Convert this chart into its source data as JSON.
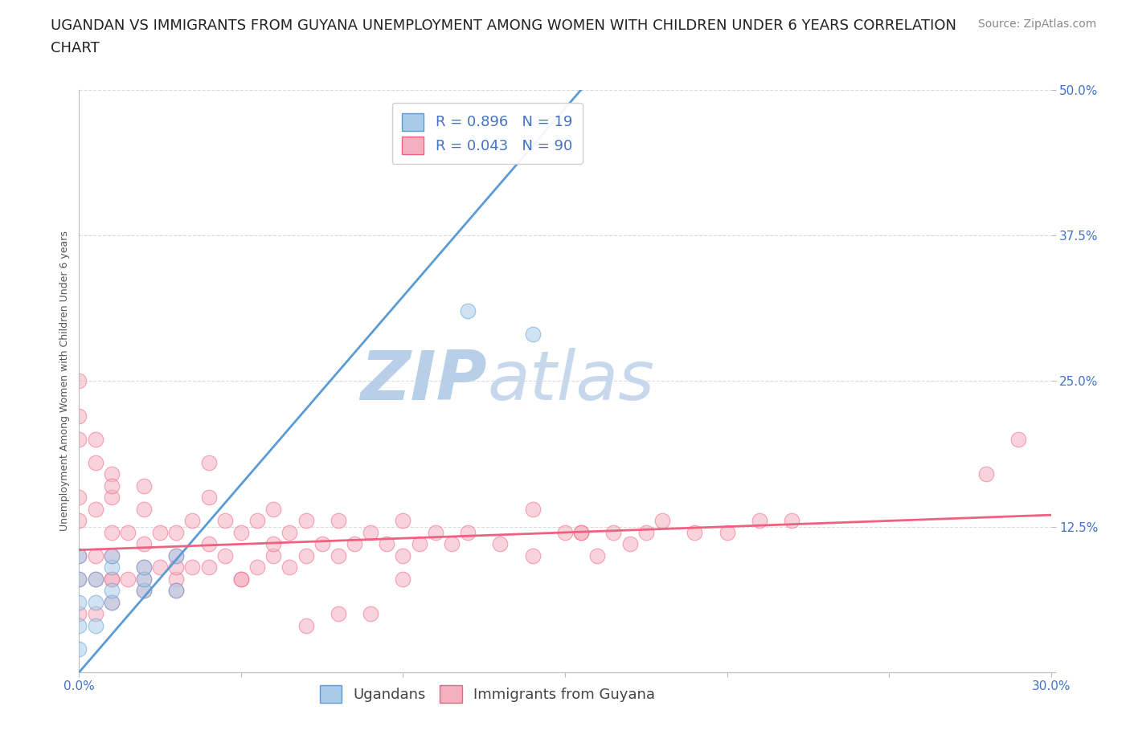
{
  "title": "UGANDAN VS IMMIGRANTS FROM GUYANA UNEMPLOYMENT AMONG WOMEN WITH CHILDREN UNDER 6 YEARS CORRELATION\nCHART",
  "source_text": "Source: ZipAtlas.com",
  "ylabel": "Unemployment Among Women with Children Under 6 years",
  "xlim": [
    0.0,
    0.3
  ],
  "ylim": [
    0.0,
    0.5
  ],
  "xticks": [
    0.0,
    0.05,
    0.1,
    0.15,
    0.2,
    0.25,
    0.3
  ],
  "xtick_labels": [
    "0.0%",
    "",
    "",
    "",
    "",
    "",
    "30.0%"
  ],
  "yticks": [
    0.0,
    0.125,
    0.25,
    0.375,
    0.5
  ],
  "ytick_labels": [
    "",
    "12.5%",
    "25.0%",
    "37.5%",
    "50.0%"
  ],
  "ugandan_color": "#a8cce8",
  "guyana_color": "#f4b0c0",
  "ugandan_line_color": "#5b9bd5",
  "guyana_line_color": "#f06080",
  "background_color": "#ffffff",
  "watermark_text": "ZIPatlas",
  "watermark_color": "#dde8f5",
  "legend_R1": "R = 0.896",
  "legend_N1": "N = 19",
  "legend_R2": "R = 0.043",
  "legend_N2": "N = 90",
  "ugandan_x": [
    0.0,
    0.0,
    0.0,
    0.0,
    0.0,
    0.005,
    0.005,
    0.005,
    0.01,
    0.01,
    0.01,
    0.01,
    0.02,
    0.02,
    0.02,
    0.03,
    0.03,
    0.12,
    0.14
  ],
  "ugandan_y": [
    0.02,
    0.04,
    0.06,
    0.08,
    0.1,
    0.04,
    0.06,
    0.08,
    0.06,
    0.07,
    0.09,
    0.1,
    0.07,
    0.08,
    0.09,
    0.07,
    0.1,
    0.31,
    0.29
  ],
  "guyana_x": [
    0.0,
    0.0,
    0.0,
    0.0,
    0.0,
    0.005,
    0.005,
    0.005,
    0.005,
    0.01,
    0.01,
    0.01,
    0.01,
    0.01,
    0.01,
    0.015,
    0.015,
    0.02,
    0.02,
    0.02,
    0.02,
    0.025,
    0.025,
    0.03,
    0.03,
    0.03,
    0.035,
    0.035,
    0.04,
    0.04,
    0.04,
    0.045,
    0.045,
    0.05,
    0.05,
    0.055,
    0.055,
    0.06,
    0.06,
    0.065,
    0.065,
    0.07,
    0.07,
    0.075,
    0.08,
    0.08,
    0.085,
    0.09,
    0.095,
    0.1,
    0.1,
    0.105,
    0.11,
    0.115,
    0.12,
    0.13,
    0.14,
    0.14,
    0.15,
    0.155,
    0.16,
    0.165,
    0.17,
    0.175,
    0.18,
    0.19,
    0.2,
    0.21,
    0.22,
    0.28,
    0.0,
    0.0,
    0.0,
    0.005,
    0.005,
    0.01,
    0.01,
    0.02,
    0.02,
    0.03,
    0.03,
    0.04,
    0.05,
    0.06,
    0.07,
    0.08,
    0.09,
    0.1,
    0.155,
    0.29
  ],
  "guyana_y": [
    0.05,
    0.08,
    0.1,
    0.13,
    0.15,
    0.05,
    0.08,
    0.1,
    0.14,
    0.06,
    0.08,
    0.1,
    0.12,
    0.15,
    0.17,
    0.08,
    0.12,
    0.07,
    0.09,
    0.11,
    0.14,
    0.09,
    0.12,
    0.08,
    0.1,
    0.12,
    0.09,
    0.13,
    0.09,
    0.11,
    0.15,
    0.1,
    0.13,
    0.08,
    0.12,
    0.09,
    0.13,
    0.1,
    0.14,
    0.09,
    0.12,
    0.1,
    0.13,
    0.11,
    0.1,
    0.13,
    0.11,
    0.12,
    0.11,
    0.1,
    0.13,
    0.11,
    0.12,
    0.11,
    0.12,
    0.11,
    0.1,
    0.14,
    0.12,
    0.12,
    0.1,
    0.12,
    0.11,
    0.12,
    0.13,
    0.12,
    0.12,
    0.13,
    0.13,
    0.17,
    0.2,
    0.22,
    0.25,
    0.18,
    0.2,
    0.16,
    0.08,
    0.16,
    0.08,
    0.07,
    0.09,
    0.18,
    0.08,
    0.11,
    0.04,
    0.05,
    0.05,
    0.08,
    0.12,
    0.2
  ],
  "ugandan_line_x": [
    0.0,
    0.155
  ],
  "ugandan_line_y": [
    0.0,
    0.5
  ],
  "guyana_line_x": [
    0.0,
    0.3
  ],
  "guyana_line_y": [
    0.105,
    0.135
  ],
  "dot_size": 180,
  "dot_alpha": 0.55,
  "title_fontsize": 13,
  "axis_label_fontsize": 9,
  "tick_fontsize": 11,
  "legend_fontsize": 13,
  "source_fontsize": 10,
  "grid_color": "#cccccc",
  "grid_alpha": 0.7,
  "spine_color": "#bbbbbb",
  "tick_color": "#4472c4"
}
